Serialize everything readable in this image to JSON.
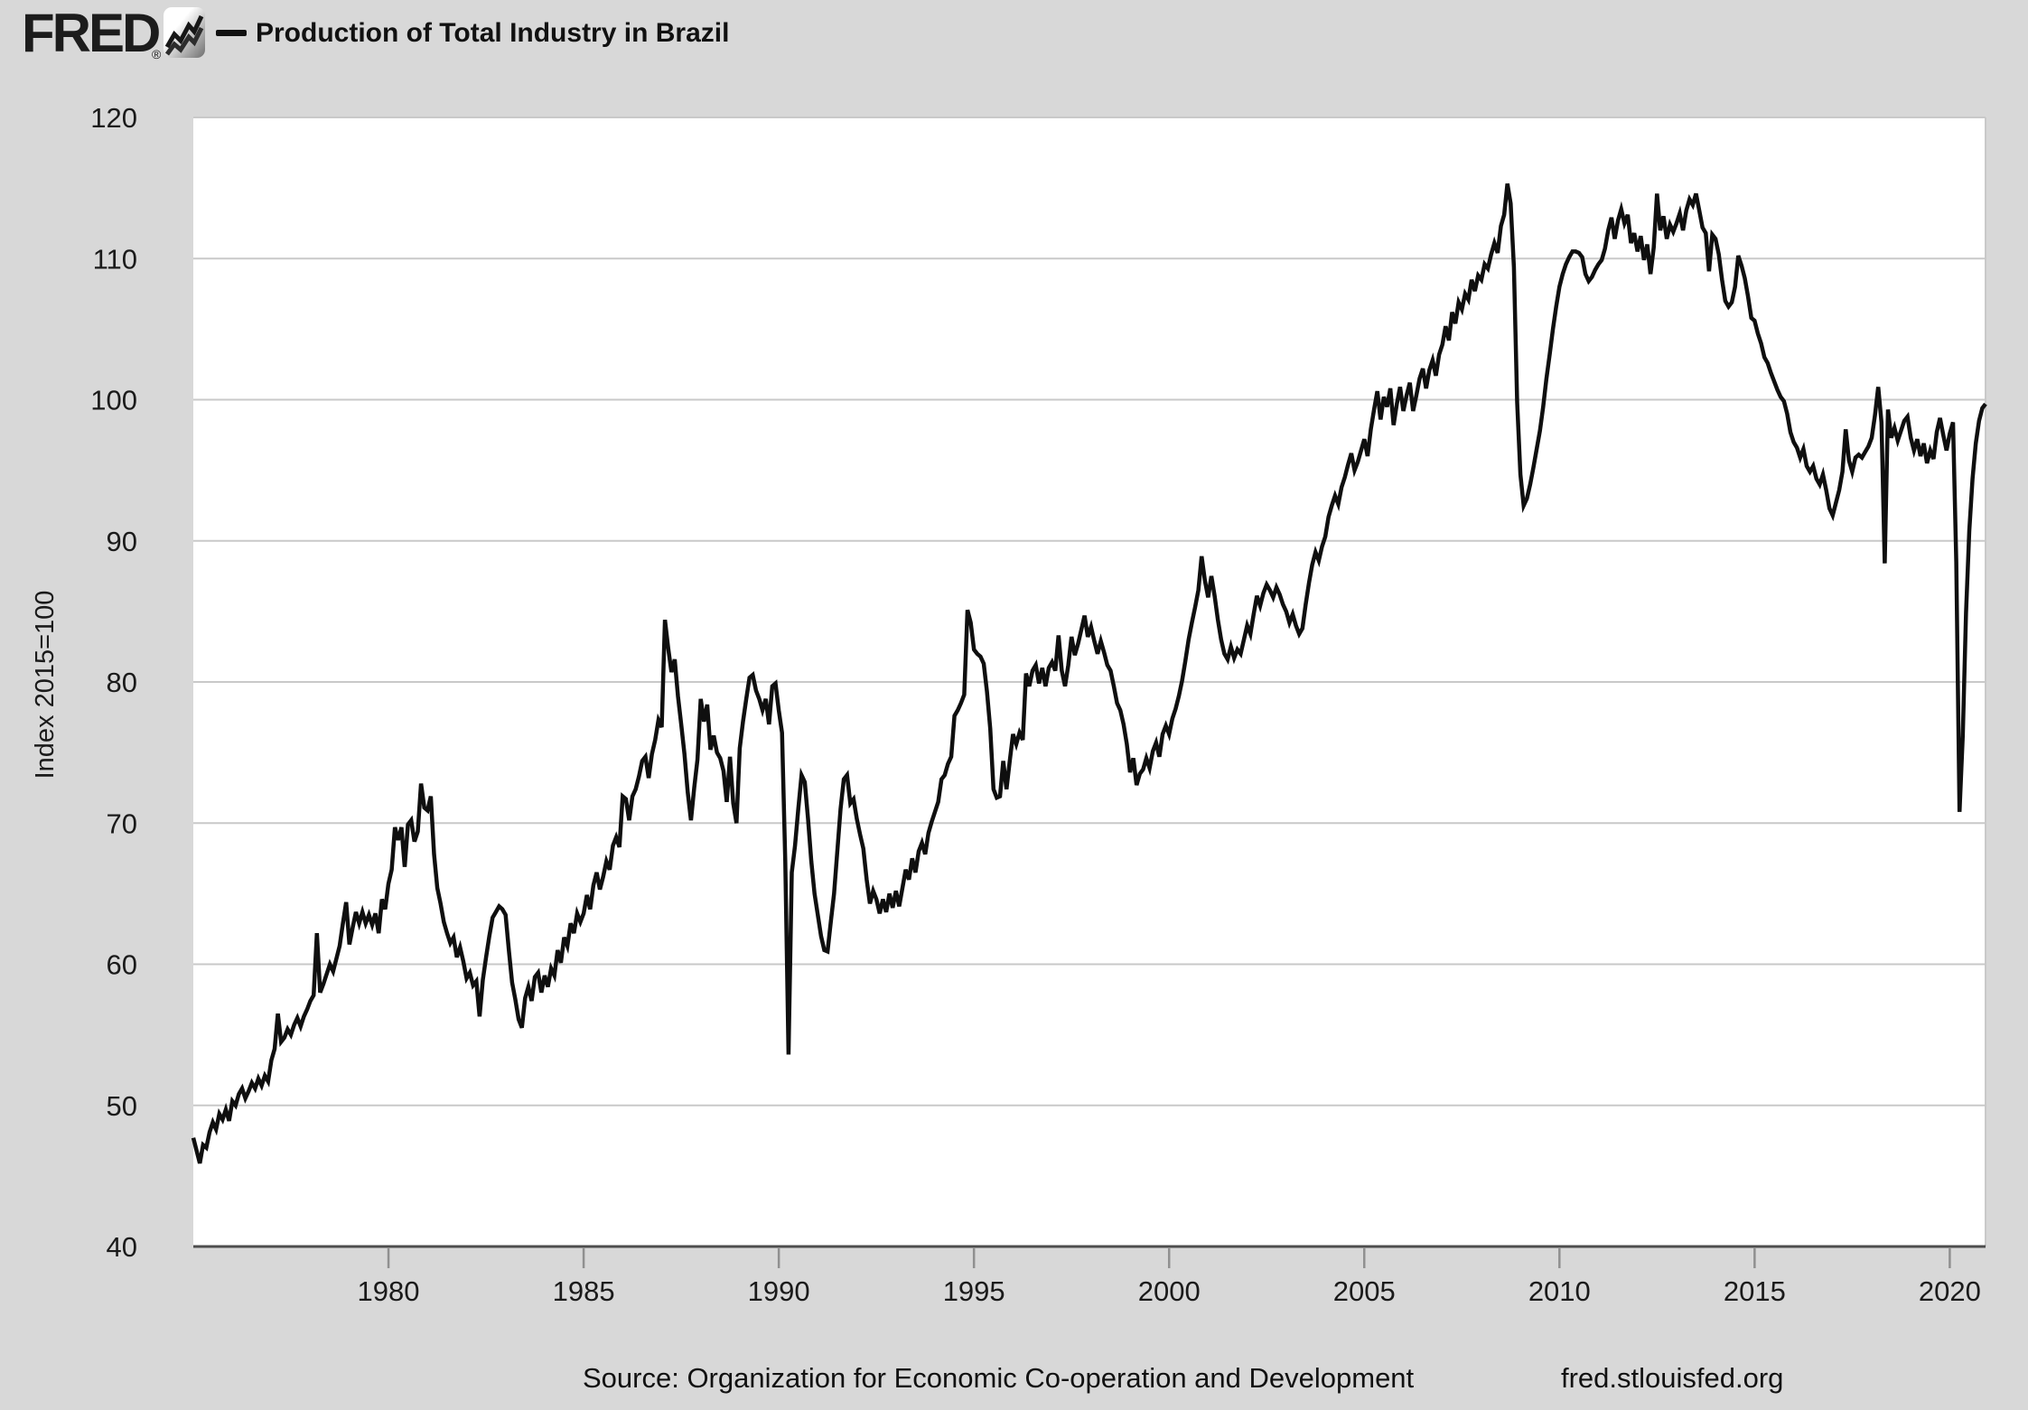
{
  "header": {
    "brand": "FRED",
    "registered": "®",
    "legend_dash": "—",
    "title": "Production of Total Industry in Brazil"
  },
  "y_axis": {
    "title": "Index 2015=100",
    "ticks": [
      40,
      50,
      60,
      70,
      80,
      90,
      100,
      110,
      120
    ]
  },
  "x_axis": {
    "ticks": [
      1980,
      1985,
      1990,
      1995,
      2000,
      2005,
      2010,
      2015,
      2020
    ]
  },
  "footer": {
    "source": "Source: Organization for Economic Co-operation and Development",
    "site": "fred.stlouisfed.org"
  },
  "colors": {
    "page_bg": "#d8d8d8",
    "plot_bg": "#ffffff",
    "grid": "#c9c9c9",
    "axis": "#4d4d4d",
    "tick": "#909090",
    "line": "#0f0f0f",
    "text": "#1a1a1a"
  },
  "chart_data": {
    "type": "line",
    "title": "Production of Total Industry in Brazil",
    "ylabel": "Index 2015=100",
    "xlabel": "",
    "ylim": [
      40,
      120
    ],
    "xlim_years": [
      1975,
      2021
    ],
    "grid": true,
    "legend_position": "top-header",
    "frequency": "monthly",
    "x_start": {
      "year": 1975,
      "month": 1
    },
    "x_end": {
      "year": 2020,
      "month": 12
    },
    "series_name": "Production of Total Industry in Brazil",
    "values": [
      47.7,
      46.8,
      45.9,
      47.2,
      47.0,
      48.1,
      48.8,
      48.3,
      49.4,
      49.0,
      49.7,
      48.9,
      50.3,
      50.0,
      50.8,
      51.2,
      50.5,
      51.0,
      51.6,
      51.2,
      51.9,
      51.4,
      52.1,
      51.7,
      53.2,
      54.0,
      56.5,
      54.5,
      54.8,
      55.4,
      55.0,
      55.7,
      56.2,
      55.6,
      56.3,
      56.8,
      57.4,
      57.8,
      62.2,
      58.0,
      58.6,
      59.3,
      60.0,
      59.5,
      60.4,
      61.3,
      62.9,
      64.4,
      61.4,
      62.6,
      63.7,
      62.9,
      63.7,
      62.9,
      63.5,
      62.8,
      63.6,
      62.2,
      64.6,
      63.9,
      65.7,
      66.7,
      69.7,
      68.8,
      69.7,
      66.9,
      69.9,
      70.2,
      68.7,
      69.4,
      72.8,
      71.1,
      70.9,
      71.9,
      67.8,
      65.4,
      64.3,
      63.0,
      62.2,
      61.5,
      61.9,
      60.5,
      61.2,
      60.2,
      59.0,
      59.4,
      58.5,
      58.8,
      56.3,
      58.9,
      60.5,
      62.0,
      63.3,
      63.7,
      64.1,
      63.9,
      63.5,
      61.0,
      58.7,
      57.5,
      56.1,
      55.5,
      57.6,
      58.4,
      57.4,
      59.1,
      59.4,
      58.0,
      59.2,
      58.4,
      59.7,
      59.2,
      61.0,
      60.1,
      61.9,
      61.3,
      62.9,
      62.2,
      63.6,
      63.0,
      63.6,
      64.9,
      63.9,
      65.6,
      66.5,
      65.3,
      66.2,
      67.3,
      66.7,
      68.4,
      69.0,
      68.3,
      71.9,
      71.7,
      70.2,
      71.9,
      72.4,
      73.3,
      74.4,
      74.7,
      73.2,
      74.9,
      75.9,
      77.3,
      76.8,
      84.4,
      82.4,
      80.7,
      81.6,
      79.0,
      77.0,
      74.9,
      72.2,
      70.2,
      72.5,
      74.5,
      78.8,
      77.2,
      78.4,
      75.2,
      76.2,
      75.0,
      74.6,
      73.7,
      71.5,
      74.7,
      71.4,
      70.0,
      75.3,
      77.2,
      78.8,
      80.3,
      80.5,
      79.4,
      78.8,
      78.0,
      78.8,
      77.0,
      79.7,
      79.9,
      78.0,
      76.4,
      67.3,
      53.6,
      66.5,
      68.4,
      71.0,
      73.4,
      72.9,
      70.3,
      67.3,
      65.0,
      63.5,
      62.0,
      61.0,
      60.9,
      63.0,
      65.0,
      68.0,
      71.0,
      73.1,
      73.4,
      71.4,
      71.7,
      70.3,
      69.2,
      68.2,
      66.0,
      64.3,
      65.2,
      64.6,
      63.6,
      64.6,
      63.7,
      65.0,
      64.0,
      65.2,
      64.1,
      65.4,
      66.7,
      66.0,
      67.5,
      66.5,
      68.0,
      68.6,
      67.8,
      69.3,
      70.1,
      70.8,
      71.5,
      73.1,
      73.4,
      74.2,
      74.7,
      77.6,
      78.0,
      78.5,
      79.1,
      85.1,
      84.2,
      82.3,
      82.0,
      81.8,
      81.3,
      79.3,
      76.7,
      72.4,
      71.8,
      71.9,
      74.4,
      72.4,
      74.4,
      76.3,
      75.6,
      76.4,
      75.9,
      80.6,
      79.7,
      80.8,
      81.2,
      79.9,
      81.0,
      79.7,
      81.0,
      81.4,
      80.8,
      83.3,
      80.8,
      79.7,
      81.2,
      83.2,
      81.9,
      82.7,
      83.7,
      84.7,
      83.2,
      83.9,
      82.9,
      82.0,
      82.9,
      82.1,
      81.2,
      80.8,
      79.7,
      78.5,
      78.0,
      77.0,
      75.6,
      73.6,
      74.6,
      72.7,
      73.5,
      73.8,
      74.6,
      73.9,
      75.1,
      75.7,
      74.7,
      76.3,
      76.9,
      76.3,
      77.4,
      78.1,
      79.0,
      80.1,
      81.5,
      83.0,
      84.2,
      85.3,
      86.5,
      88.9,
      87.2,
      86.0,
      87.5,
      86.1,
      84.4,
      83.0,
      82.0,
      81.6,
      82.5,
      81.7,
      82.3,
      82.0,
      83.0,
      84.0,
      83.4,
      84.8,
      86.1,
      85.4,
      86.3,
      86.9,
      86.5,
      86.0,
      86.7,
      86.2,
      85.5,
      85.0,
      84.2,
      84.8,
      84.0,
      83.4,
      83.8,
      85.5,
      87.0,
      88.3,
      89.2,
      88.6,
      89.6,
      90.3,
      91.7,
      92.5,
      93.2,
      92.6,
      93.8,
      94.5,
      95.4,
      96.2,
      95.0,
      95.6,
      96.4,
      97.2,
      96.0,
      97.9,
      99.3,
      100.6,
      98.6,
      100.2,
      99.5,
      100.8,
      98.2,
      99.7,
      100.9,
      99.2,
      100.3,
      101.2,
      99.2,
      100.3,
      101.5,
      102.2,
      100.8,
      102.1,
      102.8,
      101.7,
      103.2,
      103.9,
      105.2,
      104.2,
      106.2,
      105.4,
      106.9,
      106.4,
      107.5,
      107.1,
      108.5,
      107.7,
      108.8,
      108.5,
      109.6,
      109.3,
      110.3,
      111.1,
      110.4,
      112.3,
      113.1,
      115.3,
      113.9,
      109.4,
      99.8,
      94.7,
      92.5,
      93.0,
      94.0,
      95.2,
      96.5,
      97.8,
      99.5,
      101.5,
      103.2,
      105.0,
      106.6,
      108.0,
      108.9,
      109.6,
      110.1,
      110.5,
      110.5,
      110.4,
      110.1,
      108.9,
      108.4,
      108.7,
      109.2,
      109.6,
      109.9,
      110.7,
      112.0,
      112.9,
      111.4,
      112.7,
      113.5,
      112.5,
      113.1,
      111.1,
      111.8,
      110.5,
      111.6,
      109.9,
      111.0,
      108.9,
      110.8,
      114.6,
      112.0,
      113.0,
      111.4,
      112.4,
      111.9,
      112.5,
      113.2,
      112.0,
      113.4,
      114.2,
      113.8,
      114.6,
      113.4,
      112.2,
      111.8,
      109.1,
      111.7,
      111.4,
      110.3,
      108.5,
      107.0,
      106.6,
      106.9,
      108.0,
      110.2,
      109.5,
      108.6,
      107.3,
      105.8,
      105.6,
      104.7,
      104.0,
      103.0,
      102.6,
      101.9,
      101.3,
      100.7,
      100.2,
      99.9,
      99.0,
      97.7,
      97.0,
      96.6,
      95.9,
      96.5,
      95.3,
      94.9,
      95.3,
      94.4,
      94.0,
      94.7,
      93.6,
      92.3,
      91.8,
      92.7,
      93.6,
      94.9,
      97.9,
      95.7,
      94.9,
      95.9,
      96.1,
      95.9,
      96.3,
      96.7,
      97.3,
      98.9,
      100.9,
      98.4,
      88.4,
      99.3,
      97.3,
      98.0,
      97.1,
      97.8,
      98.5,
      98.8,
      97.3,
      96.4,
      97.2,
      96.0,
      96.9,
      95.5,
      96.4,
      95.8,
      97.7,
      98.7,
      97.5,
      96.4,
      97.6,
      98.4,
      88.5,
      70.8,
      76.2,
      84.9,
      90.7,
      94.4,
      96.9,
      98.5,
      99.4,
      99.7
    ]
  }
}
